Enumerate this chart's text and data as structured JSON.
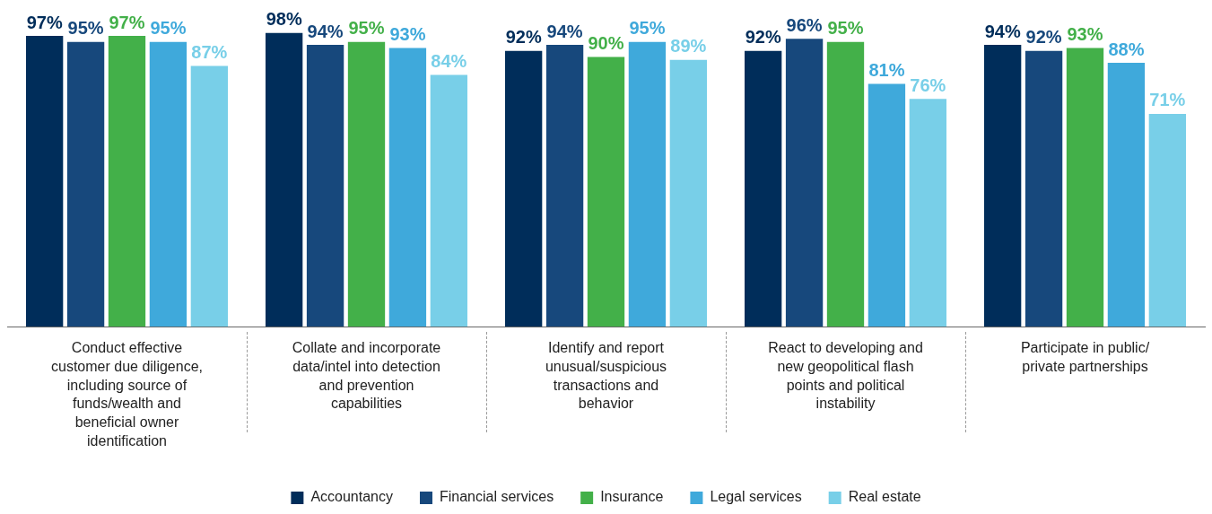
{
  "chart_data": {
    "type": "bar",
    "categories": [
      "Conduct effective customer due diligence, including source of funds/wealth and beneficial owner identification",
      "Collate and incorporate data/intel into detection and prevention capabilities",
      "Identify and report unusual/suspicious transactions and behavior",
      "React to developing and new geopolitical flash points and political instability",
      "Participate in public/ private partnerships"
    ],
    "series": [
      {
        "name": "Accountancy",
        "color": "#002d5a",
        "values": [
          97,
          98,
          92,
          92,
          94
        ],
        "value_labels": [
          "97%",
          "98%",
          "92%",
          "92%",
          "94%"
        ]
      },
      {
        "name": "Financial services",
        "color": "#17487c",
        "values": [
          95,
          94,
          94,
          96,
          92
        ],
        "value_labels": [
          "95%",
          "94%",
          "94%",
          "96%",
          "92%"
        ]
      },
      {
        "name": "Insurance",
        "color": "#43b049",
        "values": [
          97,
          95,
          90,
          95,
          93
        ],
        "value_labels": [
          "97%",
          "95%",
          "90%",
          "95%",
          "93%"
        ]
      },
      {
        "name": "Legal services",
        "color": "#3fa9db",
        "values": [
          95,
          93,
          95,
          81,
          88
        ],
        "value_labels": [
          "95%",
          "93%",
          "95%",
          "81%",
          "88%"
        ]
      },
      {
        "name": "Real estate",
        "color": "#78cfe8",
        "values": [
          87,
          84,
          89,
          76,
          71
        ],
        "value_labels": [
          "87%",
          "84%",
          "89%",
          "76%",
          "71%"
        ]
      }
    ],
    "legend": "bottom"
  }
}
